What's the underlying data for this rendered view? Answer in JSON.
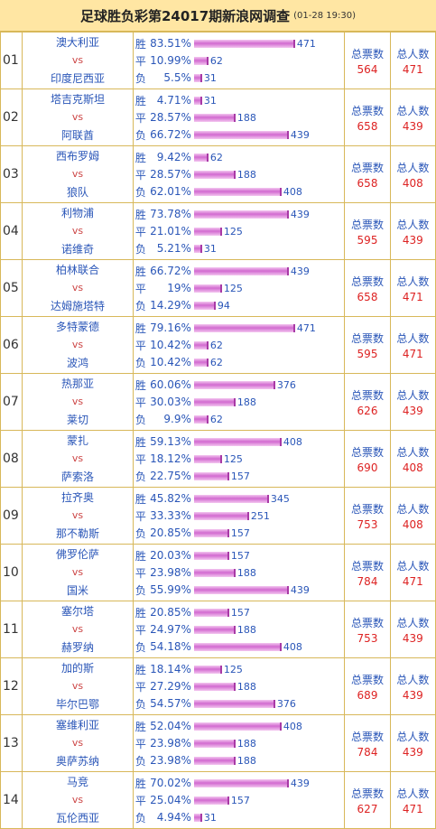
{
  "title": "足球胜负彩第24017期新浪网调查",
  "date": "(01-28 19:30)",
  "labels": {
    "vs": "vs",
    "win": "胜",
    "draw": "平",
    "loss": "负",
    "total_votes": "总票数",
    "total_people": "总人数"
  },
  "matches": [
    {
      "no": "01",
      "home": "澳大利亚",
      "away": "印度尼西亚",
      "win_pct": "83.51%",
      "win": 471,
      "draw_pct": "10.99%",
      "draw": 62,
      "loss_pct": "5.5%",
      "loss": 31,
      "votes": 564,
      "people": 471
    },
    {
      "no": "02",
      "home": "塔吉克斯坦",
      "away": "阿联酋",
      "win_pct": "4.71%",
      "win": 31,
      "draw_pct": "28.57%",
      "draw": 188,
      "loss_pct": "66.72%",
      "loss": 439,
      "votes": 658,
      "people": 439
    },
    {
      "no": "03",
      "home": "西布罗姆",
      "away": "狼队",
      "win_pct": "9.42%",
      "win": 62,
      "draw_pct": "28.57%",
      "draw": 188,
      "loss_pct": "62.01%",
      "loss": 408,
      "votes": 658,
      "people": 408
    },
    {
      "no": "04",
      "home": "利物浦",
      "away": "诺维奇",
      "win_pct": "73.78%",
      "win": 439,
      "draw_pct": "21.01%",
      "draw": 125,
      "loss_pct": "5.21%",
      "loss": 31,
      "votes": 595,
      "people": 439
    },
    {
      "no": "05",
      "home": "柏林联合",
      "away": "达姆施塔特",
      "win_pct": "66.72%",
      "win": 439,
      "draw_pct": "19%",
      "draw": 125,
      "loss_pct": "14.29%",
      "loss": 94,
      "votes": 658,
      "people": 471
    },
    {
      "no": "06",
      "home": "多特蒙德",
      "away": "波鸿",
      "win_pct": "79.16%",
      "win": 471,
      "draw_pct": "10.42%",
      "draw": 62,
      "loss_pct": "10.42%",
      "loss": 62,
      "votes": 595,
      "people": 471
    },
    {
      "no": "07",
      "home": "热那亚",
      "away": "莱切",
      "win_pct": "60.06%",
      "win": 376,
      "draw_pct": "30.03%",
      "draw": 188,
      "loss_pct": "9.9%",
      "loss": 62,
      "votes": 626,
      "people": 439
    },
    {
      "no": "08",
      "home": "蒙扎",
      "away": "萨索洛",
      "win_pct": "59.13%",
      "win": 408,
      "draw_pct": "18.12%",
      "draw": 125,
      "loss_pct": "22.75%",
      "loss": 157,
      "votes": 690,
      "people": 408
    },
    {
      "no": "09",
      "home": "拉齐奥",
      "away": "那不勒斯",
      "win_pct": "45.82%",
      "win": 345,
      "draw_pct": "33.33%",
      "draw": 251,
      "loss_pct": "20.85%",
      "loss": 157,
      "votes": 753,
      "people": 408
    },
    {
      "no": "10",
      "home": "佛罗伦萨",
      "away": "国米",
      "win_pct": "20.03%",
      "win": 157,
      "draw_pct": "23.98%",
      "draw": 188,
      "loss_pct": "55.99%",
      "loss": 439,
      "votes": 784,
      "people": 471
    },
    {
      "no": "11",
      "home": "塞尔塔",
      "away": "赫罗纳",
      "win_pct": "20.85%",
      "win": 157,
      "draw_pct": "24.97%",
      "draw": 188,
      "loss_pct": "54.18%",
      "loss": 408,
      "votes": 753,
      "people": 439
    },
    {
      "no": "12",
      "home": "加的斯",
      "away": "毕尔巴鄂",
      "win_pct": "18.14%",
      "win": 125,
      "draw_pct": "27.29%",
      "draw": 188,
      "loss_pct": "54.57%",
      "loss": 376,
      "votes": 689,
      "people": 439
    },
    {
      "no": "13",
      "home": "塞维利亚",
      "away": "奥萨苏纳",
      "win_pct": "52.04%",
      "win": 408,
      "draw_pct": "23.98%",
      "draw": 188,
      "loss_pct": "23.98%",
      "loss": 188,
      "votes": 784,
      "people": 439
    },
    {
      "no": "14",
      "home": "马竞",
      "away": "瓦伦西亚",
      "win_pct": "70.02%",
      "win": 439,
      "draw_pct": "25.04%",
      "draw": 157,
      "loss_pct": "4.94%",
      "loss": 31,
      "votes": 627,
      "people": 471
    }
  ]
}
